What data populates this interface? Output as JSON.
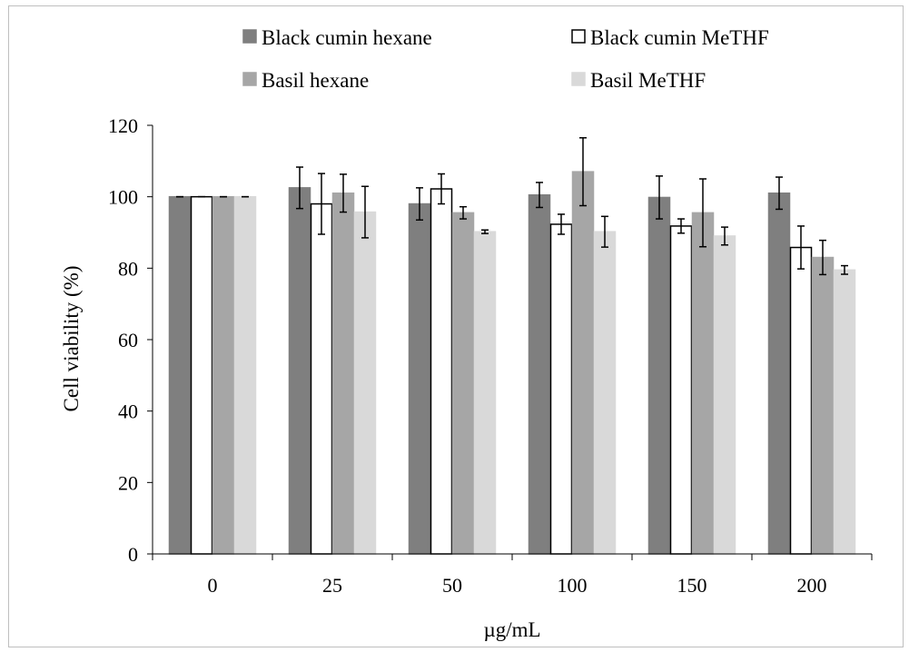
{
  "chart_data": {
    "type": "bar",
    "title": "",
    "xlabel": "µg/mL",
    "ylabel": "Cell  viability (%)",
    "ylim": [
      0,
      120
    ],
    "yticks": [
      0,
      20,
      40,
      60,
      80,
      100,
      120
    ],
    "categories": [
      "0",
      "25",
      "50",
      "100",
      "150",
      "200"
    ],
    "grid": false,
    "legend_position": "top",
    "series": [
      {
        "name": "Black cumin hexane",
        "color": "#7f7f7f",
        "stroke": "#7f7f7f",
        "values": [
          100,
          102.5,
          98,
          100.5,
          99.8,
          101
        ],
        "errors": [
          0,
          5.8,
          4.5,
          3.5,
          6,
          4.5
        ]
      },
      {
        "name": "Black cumin MeTHF",
        "color": "#ffffff",
        "stroke": "#000000",
        "values": [
          100,
          98,
          102.2,
          92.3,
          91.8,
          85.8
        ],
        "errors": [
          0,
          8.5,
          4.2,
          2.8,
          2,
          6
        ]
      },
      {
        "name": "Basil hexane",
        "color": "#a6a6a6",
        "stroke": "#a6a6a6",
        "values": [
          100,
          101,
          95.5,
          107,
          95.5,
          83
        ],
        "errors": [
          0,
          5.3,
          1.7,
          9.5,
          9.5,
          4.8
        ]
      },
      {
        "name": "Basil MeTHF",
        "color": "#d9d9d9",
        "stroke": "#d9d9d9",
        "values": [
          100,
          95.7,
          90.2,
          90.2,
          89,
          79.5
        ],
        "errors": [
          0,
          7.2,
          0.5,
          4.3,
          2.5,
          1.2
        ]
      }
    ]
  }
}
